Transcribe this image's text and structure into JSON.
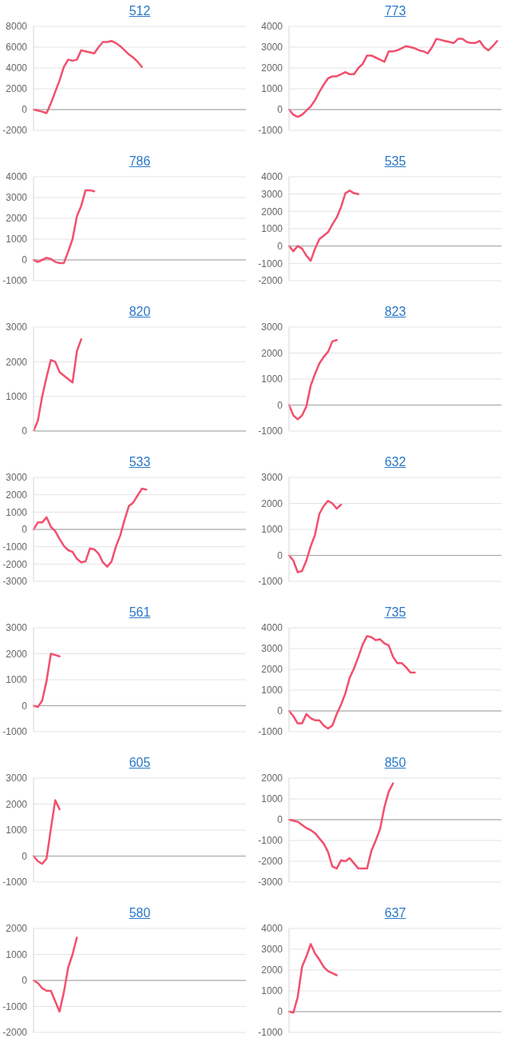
{
  "chart_data": [
    {
      "type": "line",
      "title": "512",
      "categories": [
        null,
        null,
        null,
        null,
        null,
        null,
        null,
        null,
        null,
        null,
        null,
        null,
        null,
        null,
        null,
        null,
        null,
        null,
        null,
        null,
        null,
        null,
        null,
        null,
        null,
        null,
        null,
        null,
        null,
        null,
        null,
        null,
        null,
        null,
        null,
        null,
        null,
        null,
        null,
        null,
        null,
        null,
        null,
        null,
        null,
        null,
        null,
        null,
        null,
        null
      ],
      "values": [
        0,
        -100,
        -200,
        -350,
        600,
        1700,
        2800,
        4100,
        4800,
        4700,
        4800,
        5700,
        5600,
        5500,
        5400,
        6000,
        6500,
        6500,
        6600,
        6400,
        6100,
        5700,
        5300,
        5000,
        4600,
        4100,
        null,
        null,
        null,
        null,
        null,
        null,
        null,
        null,
        null,
        null,
        null,
        null,
        null,
        null,
        null,
        null,
        null,
        null,
        null,
        null,
        null,
        null,
        null,
        null
      ],
      "color": "#f2506e",
      "ylim": [
        -2000,
        8000
      ],
      "yticks": [
        -2000,
        0,
        2000,
        4000,
        6000,
        8000
      ],
      "grid": "y",
      "tick_labels": "y",
      "ref_lines": [
        {
          "axis": "y",
          "value": 0,
          "color": "#a0a0a0"
        }
      ]
    },
    {
      "type": "line",
      "title": "773",
      "categories": [
        null,
        null,
        null,
        null,
        null,
        null,
        null,
        null,
        null,
        null,
        null,
        null,
        null,
        null,
        null,
        null,
        null,
        null,
        null,
        null,
        null,
        null,
        null,
        null,
        null,
        null,
        null,
        null,
        null,
        null,
        null,
        null,
        null,
        null,
        null,
        null,
        null,
        null,
        null,
        null,
        null,
        null,
        null,
        null,
        null,
        null,
        null,
        null,
        null,
        null
      ],
      "values": [
        0,
        -250,
        -350,
        -250,
        -50,
        150,
        450,
        850,
        1200,
        1500,
        1600,
        1600,
        1700,
        1800,
        1700,
        1700,
        2000,
        2200,
        2600,
        2600,
        2500,
        2400,
        2300,
        2800,
        2800,
        2850,
        2950,
        3050,
        3000,
        2950,
        2850,
        2800,
        2700,
        3000,
        3400,
        3350,
        3300,
        3250,
        3200,
        3400,
        3400,
        3250,
        3200,
        3200,
        3300,
        3000,
        2850,
        3050,
        3300,
        null
      ],
      "color": "#f2506e",
      "ylim": [
        -1000,
        4000
      ],
      "yticks": [
        -1000,
        0,
        1000,
        2000,
        3000,
        4000
      ],
      "grid": "y",
      "tick_labels": "y",
      "ref_lines": [
        {
          "axis": "y",
          "value": 0,
          "color": "#a0a0a0"
        }
      ]
    },
    {
      "type": "line",
      "title": "786",
      "categories": [
        null,
        null,
        null,
        null,
        null,
        null,
        null,
        null,
        null,
        null,
        null,
        null,
        null,
        null,
        null,
        null,
        null,
        null,
        null,
        null,
        null,
        null,
        null,
        null,
        null,
        null,
        null,
        null,
        null,
        null,
        null,
        null,
        null,
        null,
        null,
        null,
        null,
        null,
        null,
        null,
        null,
        null,
        null,
        null,
        null,
        null,
        null,
        null,
        null,
        null
      ],
      "values": [
        0,
        -100,
        0,
        100,
        50,
        -100,
        -150,
        -150,
        400,
        1000,
        2100,
        2600,
        3350,
        3350,
        3300,
        null,
        null,
        null,
        null,
        null,
        null,
        null,
        null,
        null,
        null,
        null,
        null,
        null,
        null,
        null,
        null,
        null,
        null,
        null,
        null,
        null,
        null,
        null,
        null,
        null,
        null,
        null,
        null,
        null,
        null,
        null,
        null,
        null,
        null,
        null
      ],
      "color": "#f2506e",
      "ylim": [
        -1000,
        4000
      ],
      "yticks": [
        -1000,
        0,
        1000,
        2000,
        3000,
        4000
      ],
      "grid": "y",
      "tick_labels": "y",
      "ref_lines": [
        {
          "axis": "y",
          "value": 0,
          "color": "#a0a0a0"
        }
      ]
    },
    {
      "type": "line",
      "title": "535",
      "categories": [
        null,
        null,
        null,
        null,
        null,
        null,
        null,
        null,
        null,
        null,
        null,
        null,
        null,
        null,
        null,
        null,
        null,
        null,
        null,
        null,
        null,
        null,
        null,
        null,
        null,
        null,
        null,
        null,
        null,
        null,
        null,
        null,
        null,
        null,
        null,
        null,
        null,
        null,
        null,
        null,
        null,
        null,
        null,
        null,
        null,
        null,
        null,
        null,
        null,
        null
      ],
      "values": [
        0,
        -300,
        0,
        -150,
        -550,
        -850,
        -150,
        400,
        600,
        800,
        1250,
        1650,
        2250,
        3050,
        3200,
        3050,
        3000,
        null,
        null,
        null,
        null,
        null,
        null,
        null,
        null,
        null,
        null,
        null,
        null,
        null,
        null,
        null,
        null,
        null,
        null,
        null,
        null,
        null,
        null,
        null,
        null,
        null,
        null,
        null,
        null,
        null,
        null,
        null,
        null,
        null
      ],
      "color": "#f2506e",
      "ylim": [
        -2000,
        4000
      ],
      "yticks": [
        -2000,
        -1000,
        0,
        1000,
        2000,
        3000,
        4000
      ],
      "grid": "y",
      "tick_labels": "y",
      "ref_lines": [
        {
          "axis": "y",
          "value": 0,
          "color": "#a0a0a0"
        }
      ]
    },
    {
      "type": "line",
      "title": "820",
      "categories": [
        null,
        null,
        null,
        null,
        null,
        null,
        null,
        null,
        null,
        null,
        null,
        null,
        null,
        null,
        null,
        null,
        null,
        null,
        null,
        null,
        null,
        null,
        null,
        null,
        null,
        null,
        null,
        null,
        null,
        null,
        null,
        null,
        null,
        null,
        null,
        null,
        null,
        null,
        null,
        null,
        null,
        null,
        null,
        null,
        null,
        null,
        null,
        null,
        null,
        null
      ],
      "values": [
        0,
        300,
        1000,
        1550,
        2050,
        2000,
        1700,
        1600,
        1500,
        1400,
        2300,
        2650,
        null,
        null,
        null,
        null,
        null,
        null,
        null,
        null,
        null,
        null,
        null,
        null,
        null,
        null,
        null,
        null,
        null,
        null,
        null,
        null,
        null,
        null,
        null,
        null,
        null,
        null,
        null,
        null,
        null,
        null,
        null,
        null,
        null,
        null,
        null,
        null,
        null,
        null
      ],
      "color": "#f2506e",
      "ylim": [
        0,
        3000
      ],
      "yticks": [
        0,
        1000,
        2000,
        3000
      ],
      "grid": "y",
      "tick_labels": "y",
      "ref_lines": [
        {
          "axis": "y",
          "value": 0,
          "color": "#a0a0a0"
        }
      ]
    },
    {
      "type": "line",
      "title": "823",
      "categories": [
        null,
        null,
        null,
        null,
        null,
        null,
        null,
        null,
        null,
        null,
        null,
        null,
        null,
        null,
        null,
        null,
        null,
        null,
        null,
        null,
        null,
        null,
        null,
        null,
        null,
        null,
        null,
        null,
        null,
        null,
        null,
        null,
        null,
        null,
        null,
        null,
        null,
        null,
        null,
        null,
        null,
        null,
        null,
        null,
        null,
        null,
        null,
        null,
        null,
        null
      ],
      "values": [
        0,
        -400,
        -550,
        -400,
        -50,
        750,
        1200,
        1600,
        1850,
        2050,
        2450,
        2500,
        null,
        null,
        null,
        null,
        null,
        null,
        null,
        null,
        null,
        null,
        null,
        null,
        null,
        null,
        null,
        null,
        null,
        null,
        null,
        null,
        null,
        null,
        null,
        null,
        null,
        null,
        null,
        null,
        null,
        null,
        null,
        null,
        null,
        null,
        null,
        null,
        null,
        null
      ],
      "color": "#f2506e",
      "ylim": [
        -1000,
        3000
      ],
      "yticks": [
        -1000,
        0,
        1000,
        2000,
        3000
      ],
      "grid": "y",
      "tick_labels": "y",
      "ref_lines": [
        {
          "axis": "y",
          "value": 0,
          "color": "#a0a0a0"
        }
      ]
    },
    {
      "type": "line",
      "title": "533",
      "categories": [
        null,
        null,
        null,
        null,
        null,
        null,
        null,
        null,
        null,
        null,
        null,
        null,
        null,
        null,
        null,
        null,
        null,
        null,
        null,
        null,
        null,
        null,
        null,
        null,
        null,
        null,
        null,
        null,
        null,
        null,
        null,
        null,
        null,
        null,
        null,
        null,
        null,
        null,
        null,
        null,
        null,
        null,
        null,
        null,
        null,
        null,
        null,
        null,
        null,
        null
      ],
      "values": [
        0,
        400,
        400,
        700,
        150,
        -100,
        -550,
        -950,
        -1200,
        -1300,
        -1700,
        -1900,
        -1850,
        -1100,
        -1150,
        -1400,
        -1900,
        -2150,
        -1850,
        -1000,
        -350,
        550,
        1350,
        1550,
        1950,
        2350,
        2300,
        null,
        null,
        null,
        null,
        null,
        null,
        null,
        null,
        null,
        null,
        null,
        null,
        null,
        null,
        null,
        null,
        null,
        null,
        null,
        null,
        null,
        null,
        null
      ],
      "color": "#f2506e",
      "ylim": [
        -3000,
        3000
      ],
      "yticks": [
        -3000,
        -2000,
        -1000,
        0,
        1000,
        2000,
        3000
      ],
      "grid": "y",
      "tick_labels": "y",
      "ref_lines": [
        {
          "axis": "y",
          "value": 0,
          "color": "#a0a0a0"
        }
      ]
    },
    {
      "type": "line",
      "title": "632",
      "categories": [
        null,
        null,
        null,
        null,
        null,
        null,
        null,
        null,
        null,
        null,
        null,
        null,
        null,
        null,
        null,
        null,
        null,
        null,
        null,
        null,
        null,
        null,
        null,
        null,
        null,
        null,
        null,
        null,
        null,
        null,
        null,
        null,
        null,
        null,
        null,
        null,
        null,
        null,
        null,
        null,
        null,
        null,
        null,
        null,
        null,
        null,
        null,
        null,
        null,
        null
      ],
      "values": [
        0,
        -200,
        -650,
        -600,
        -200,
        350,
        800,
        1600,
        1900,
        2100,
        2000,
        1800,
        1950,
        null,
        null,
        null,
        null,
        null,
        null,
        null,
        null,
        null,
        null,
        null,
        null,
        null,
        null,
        null,
        null,
        null,
        null,
        null,
        null,
        null,
        null,
        null,
        null,
        null,
        null,
        null,
        null,
        null,
        null,
        null,
        null,
        null,
        null,
        null,
        null,
        null
      ],
      "color": "#f2506e",
      "ylim": [
        -1000,
        3000
      ],
      "yticks": [
        -1000,
        0,
        1000,
        2000,
        3000
      ],
      "grid": "y",
      "tick_labels": "y",
      "ref_lines": [
        {
          "axis": "y",
          "value": 0,
          "color": "#a0a0a0"
        }
      ]
    },
    {
      "type": "line",
      "title": "561",
      "categories": [
        null,
        null,
        null,
        null,
        null,
        null,
        null,
        null,
        null,
        null,
        null,
        null,
        null,
        null,
        null,
        null,
        null,
        null,
        null,
        null,
        null,
        null,
        null,
        null,
        null,
        null,
        null,
        null,
        null,
        null,
        null,
        null,
        null,
        null,
        null,
        null,
        null,
        null,
        null,
        null,
        null,
        null,
        null,
        null,
        null,
        null,
        null,
        null,
        null,
        null
      ],
      "values": [
        0,
        -50,
        200,
        950,
        2000,
        1950,
        1900,
        null,
        null,
        null,
        null,
        null,
        null,
        null,
        null,
        null,
        null,
        null,
        null,
        null,
        null,
        null,
        null,
        null,
        null,
        null,
        null,
        null,
        null,
        null,
        null,
        null,
        null,
        null,
        null,
        null,
        null,
        null,
        null,
        null,
        null,
        null,
        null,
        null,
        null,
        null,
        null,
        null,
        null,
        null
      ],
      "color": "#f2506e",
      "ylim": [
        -1000,
        3000
      ],
      "yticks": [
        -1000,
        0,
        1000,
        2000,
        3000
      ],
      "grid": "y",
      "tick_labels": "y",
      "ref_lines": [
        {
          "axis": "y",
          "value": 0,
          "color": "#a0a0a0"
        }
      ]
    },
    {
      "type": "line",
      "title": "735",
      "categories": [
        null,
        null,
        null,
        null,
        null,
        null,
        null,
        null,
        null,
        null,
        null,
        null,
        null,
        null,
        null,
        null,
        null,
        null,
        null,
        null,
        null,
        null,
        null,
        null,
        null,
        null,
        null,
        null,
        null,
        null,
        null,
        null,
        null,
        null,
        null,
        null,
        null,
        null,
        null,
        null,
        null,
        null,
        null,
        null,
        null,
        null,
        null,
        null,
        null,
        null
      ],
      "values": [
        0,
        -250,
        -600,
        -600,
        -150,
        -350,
        -450,
        -450,
        -700,
        -850,
        -700,
        -150,
        300,
        850,
        1600,
        2050,
        2600,
        3200,
        3600,
        3550,
        3400,
        3450,
        3250,
        3150,
        2600,
        2300,
        2300,
        2100,
        1850,
        1850,
        null,
        null,
        null,
        null,
        null,
        null,
        null,
        null,
        null,
        null,
        null,
        null,
        null,
        null,
        null,
        null,
        null,
        null,
        null,
        null
      ],
      "color": "#f2506e",
      "ylim": [
        -1000,
        4000
      ],
      "yticks": [
        -1000,
        0,
        1000,
        2000,
        3000,
        4000
      ],
      "grid": "y",
      "tick_labels": "y",
      "ref_lines": [
        {
          "axis": "y",
          "value": 0,
          "color": "#a0a0a0"
        }
      ]
    },
    {
      "type": "line",
      "title": "605",
      "categories": [
        null,
        null,
        null,
        null,
        null,
        null,
        null,
        null,
        null,
        null,
        null,
        null,
        null,
        null,
        null,
        null,
        null,
        null,
        null,
        null,
        null,
        null,
        null,
        null,
        null,
        null,
        null,
        null,
        null,
        null,
        null,
        null,
        null,
        null,
        null,
        null,
        null,
        null,
        null,
        null,
        null,
        null,
        null,
        null,
        null,
        null,
        null,
        null,
        null,
        null
      ],
      "values": [
        0,
        -200,
        -300,
        -100,
        1050,
        2150,
        1800,
        null,
        null,
        null,
        null,
        null,
        null,
        null,
        null,
        null,
        null,
        null,
        null,
        null,
        null,
        null,
        null,
        null,
        null,
        null,
        null,
        null,
        null,
        null,
        null,
        null,
        null,
        null,
        null,
        null,
        null,
        null,
        null,
        null,
        null,
        null,
        null,
        null,
        null,
        null,
        null,
        null,
        null,
        null
      ],
      "color": "#f2506e",
      "ylim": [
        -1000,
        3000
      ],
      "yticks": [
        -1000,
        0,
        1000,
        2000,
        3000
      ],
      "grid": "y",
      "tick_labels": "y",
      "ref_lines": [
        {
          "axis": "y",
          "value": 0,
          "color": "#a0a0a0"
        }
      ]
    },
    {
      "type": "line",
      "title": "850",
      "categories": [
        null,
        null,
        null,
        null,
        null,
        null,
        null,
        null,
        null,
        null,
        null,
        null,
        null,
        null,
        null,
        null,
        null,
        null,
        null,
        null,
        null,
        null,
        null,
        null,
        null,
        null,
        null,
        null,
        null,
        null,
        null,
        null,
        null,
        null,
        null,
        null,
        null,
        null,
        null,
        null,
        null,
        null,
        null,
        null,
        null,
        null,
        null,
        null,
        null,
        null
      ],
      "values": [
        0,
        -50,
        -100,
        -250,
        -400,
        -500,
        -650,
        -900,
        -1150,
        -1550,
        -2250,
        -2350,
        -1950,
        -2000,
        -1850,
        -2100,
        -2350,
        -2350,
        -2350,
        -1500,
        -1000,
        -450,
        600,
        1350,
        1750,
        null,
        null,
        null,
        null,
        null,
        null,
        null,
        null,
        null,
        null,
        null,
        null,
        null,
        null,
        null,
        null,
        null,
        null,
        null,
        null,
        null,
        null,
        null,
        null,
        null
      ],
      "color": "#f2506e",
      "ylim": [
        -3000,
        2000
      ],
      "yticks": [
        -3000,
        -2000,
        -1000,
        0,
        1000,
        2000
      ],
      "grid": "y",
      "tick_labels": "y",
      "ref_lines": [
        {
          "axis": "y",
          "value": 0,
          "color": "#a0a0a0"
        }
      ]
    },
    {
      "type": "line",
      "title": "580",
      "categories": [
        null,
        null,
        null,
        null,
        null,
        null,
        null,
        null,
        null,
        null,
        null,
        null,
        null,
        null,
        null,
        null,
        null,
        null,
        null,
        null,
        null,
        null,
        null,
        null,
        null,
        null,
        null,
        null,
        null,
        null,
        null,
        null,
        null,
        null,
        null,
        null,
        null,
        null,
        null,
        null,
        null,
        null,
        null,
        null,
        null,
        null,
        null,
        null,
        null,
        null
      ],
      "values": [
        0,
        -100,
        -300,
        -400,
        -400,
        -800,
        -1200,
        -450,
        500,
        1000,
        1650,
        null,
        null,
        null,
        null,
        null,
        null,
        null,
        null,
        null,
        null,
        null,
        null,
        null,
        null,
        null,
        null,
        null,
        null,
        null,
        null,
        null,
        null,
        null,
        null,
        null,
        null,
        null,
        null,
        null,
        null,
        null,
        null,
        null,
        null,
        null,
        null,
        null,
        null,
        null
      ],
      "color": "#f2506e",
      "ylim": [
        -2000,
        2000
      ],
      "yticks": [
        -2000,
        -1000,
        0,
        1000,
        2000
      ],
      "grid": "y",
      "tick_labels": "y",
      "ref_lines": [
        {
          "axis": "y",
          "value": 0,
          "color": "#a0a0a0"
        }
      ]
    },
    {
      "type": "line",
      "title": "637",
      "categories": [
        null,
        null,
        null,
        null,
        null,
        null,
        null,
        null,
        null,
        null,
        null,
        null,
        null,
        null,
        null,
        null,
        null,
        null,
        null,
        null,
        null,
        null,
        null,
        null,
        null,
        null,
        null,
        null,
        null,
        null,
        null,
        null,
        null,
        null,
        null,
        null,
        null,
        null,
        null,
        null,
        null,
        null,
        null,
        null,
        null,
        null,
        null,
        null,
        null,
        null
      ],
      "values": [
        0,
        -50,
        700,
        2150,
        2650,
        3250,
        2800,
        2500,
        2150,
        1950,
        1850,
        1750,
        null,
        null,
        null,
        null,
        null,
        null,
        null,
        null,
        null,
        null,
        null,
        null,
        null,
        null,
        null,
        null,
        null,
        null,
        null,
        null,
        null,
        null,
        null,
        null,
        null,
        null,
        null,
        null,
        null,
        null,
        null,
        null,
        null,
        null,
        null,
        null,
        null,
        null
      ],
      "color": "#f2506e",
      "ylim": [
        -1000,
        4000
      ],
      "yticks": [
        -1000,
        0,
        1000,
        2000,
        3000,
        4000
      ],
      "grid": "y",
      "tick_labels": "y",
      "ref_lines": [
        {
          "axis": "y",
          "value": 0,
          "color": "#a0a0a0"
        }
      ]
    }
  ]
}
